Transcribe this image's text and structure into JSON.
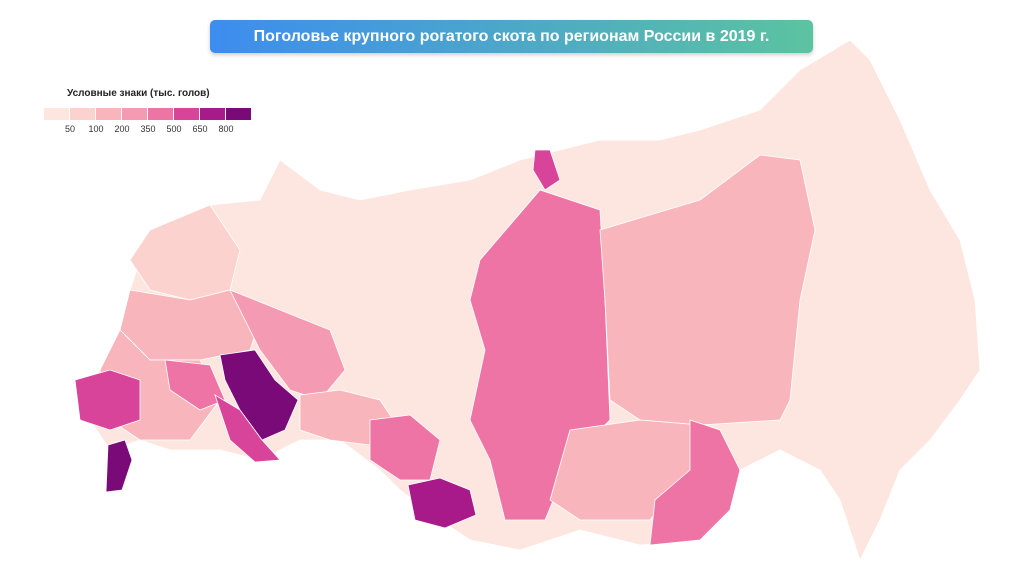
{
  "title": "Поголовье крупного рогатого скота по регионам России в 2019 г.",
  "legend": {
    "title": "Условные знаки (тыс. голов)",
    "thresholds": [
      50,
      100,
      200,
      350,
      500,
      650,
      800
    ],
    "colors": [
      "#fde6e0",
      "#fbd2ce",
      "#f8b6bc",
      "#f49ab2",
      "#ee74a6",
      "#d8449a",
      "#a81a8a",
      "#7a0a78"
    ]
  }
}
